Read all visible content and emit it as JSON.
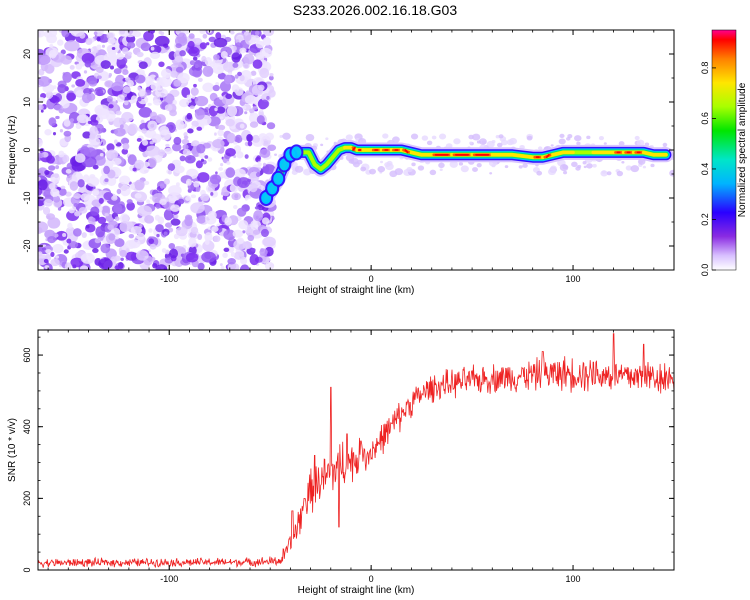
{
  "title": "S233.2026.002.16.18.G03",
  "colors": {
    "line": "#ee2222",
    "axis": "#000000",
    "noise_a": "#7a2cf0",
    "noise_b": "#cdb4fb"
  },
  "chart_data": [
    {
      "type": "heatmap",
      "panel": "top",
      "xlabel": "Height of straight line (km)",
      "ylabel": "Frequency (Hz)",
      "xlim": [
        -165,
        150
      ],
      "ylim": [
        -25,
        25
      ],
      "xticks": [
        -100,
        0,
        100
      ],
      "xtick_labels": [
        "-100",
        "0",
        "100"
      ],
      "yticks": [
        -20,
        -10,
        0,
        10,
        20
      ],
      "ytick_labels": [
        "-20",
        "-10",
        "0",
        "10",
        "20"
      ],
      "noise_region_x": [
        -165,
        -52
      ],
      "ridge": {
        "x": [
          -52,
          -49,
          -46,
          -43,
          -40,
          -37,
          -34,
          -31,
          -28,
          -25,
          -22,
          -19,
          -16,
          -13,
          -10,
          -7,
          -4,
          0,
          5,
          10,
          15,
          20,
          25,
          30,
          40,
          50,
          60,
          70,
          80,
          85,
          90,
          95,
          100,
          105,
          110,
          115,
          120,
          125,
          130,
          135,
          140,
          146
        ],
        "freq": [
          -10,
          -8,
          -6,
          -3,
          -1,
          -0.5,
          -0.5,
          -0.5,
          -3,
          -4,
          -3,
          -1.5,
          0,
          0.5,
          0.5,
          0,
          0,
          0,
          0,
          0,
          0,
          -0.5,
          -1,
          -1,
          -1,
          -1,
          -1,
          -1,
          -1.5,
          -1.5,
          -1,
          -0.5,
          -0.5,
          -0.5,
          -0.5,
          -0.5,
          -0.5,
          -0.5,
          -0.5,
          -0.5,
          -1,
          -1
        ],
        "amplitude": [
          0.3,
          0.35,
          0.4,
          0.45,
          0.6,
          0.7,
          0.65,
          0.6,
          0.4,
          0.35,
          0.5,
          0.6,
          0.75,
          0.85,
          0.95,
          0.9,
          0.8,
          0.95,
          1.0,
          0.95,
          0.9,
          0.85,
          0.85,
          0.9,
          0.95,
          0.9,
          0.85,
          0.85,
          0.9,
          0.95,
          0.85,
          0.8,
          0.7,
          0.75,
          0.8,
          0.85,
          0.9,
          0.95,
          0.9,
          0.85,
          0.8,
          0.8
        ]
      },
      "colorbar": {
        "label": "Normalized spectral amplitude",
        "range": [
          0,
          0.95
        ],
        "ticks": [
          0.0,
          0.2,
          0.4,
          0.6,
          0.8
        ],
        "tick_labels": [
          "0.0",
          "0.2",
          "0.4",
          "0.6",
          "0.8"
        ]
      }
    },
    {
      "type": "line",
      "panel": "bottom",
      "xlabel": "Height of straight line (km)",
      "ylabel": "SNR (10 * v/v)",
      "xlim": [
        -165,
        150
      ],
      "ylim": [
        0,
        670
      ],
      "xticks": [
        -100,
        0,
        100
      ],
      "xtick_labels": [
        "-100",
        "0",
        "100"
      ],
      "yticks": [
        0,
        200,
        400,
        600
      ],
      "ytick_labels": [
        "0",
        "200",
        "400",
        "600"
      ],
      "series": [
        {
          "name": "SNR",
          "trend_x": [
            -165,
            -60,
            -45,
            -40,
            -30,
            -20,
            -15,
            -10,
            0,
            10,
            20,
            30,
            50,
            80,
            100,
            130,
            150
          ],
          "trend_y": [
            20,
            22,
            25,
            70,
            220,
            270,
            300,
            300,
            330,
            400,
            470,
            510,
            530,
            545,
            550,
            540,
            540
          ],
          "spike_x": [
            -39,
            -33,
            -28,
            -20,
            -16,
            -12,
            -5,
            85,
            110,
            120,
            135
          ],
          "spike_y": [
            165,
            200,
            320,
            510,
            120,
            380,
            360,
            610,
            580,
            660,
            630
          ],
          "noise_scale": [
            12,
            12,
            15,
            40,
            60,
            70,
            70,
            60,
            45,
            45,
            40,
            40,
            40,
            45,
            50,
            50,
            50
          ]
        }
      ]
    }
  ]
}
